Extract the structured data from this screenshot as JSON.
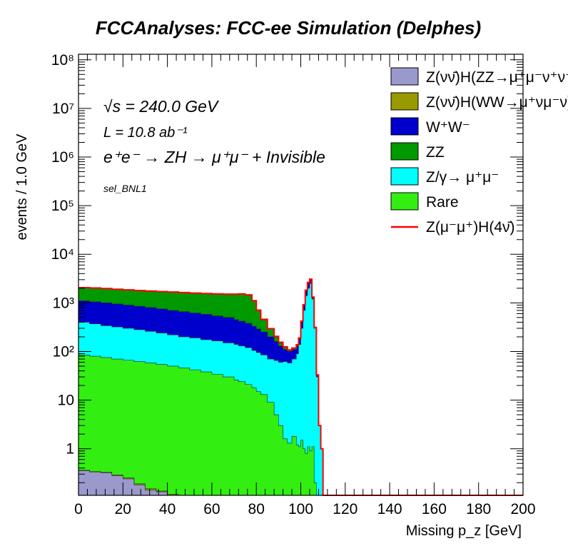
{
  "chart_data": {
    "type": "area",
    "title": "FCCAnalyses: FCC-ee Simulation (Delphes)",
    "xlabel": "Missing p_z [GeV]",
    "ylabel": "events / 1.0 GeV",
    "xlim": [
      0,
      200
    ],
    "ylim": [
      0.11,
      130000000
    ],
    "log_y": true,
    "grid": false,
    "legend_position": "top-right",
    "annotations": [
      "√s = 240.0 GeV",
      "L = 10.8 ab⁻¹",
      "e⁺e⁻ → ZH → μ⁺μ⁻ + Invisible",
      "sel_BNL1"
    ],
    "x_ticks": [
      "0",
      "20",
      "40",
      "60",
      "80",
      "100",
      "120",
      "140",
      "160",
      "180",
      "200"
    ],
    "y_ticks": [
      "1",
      "10",
      "10²",
      "10³",
      "10⁴",
      "10⁵",
      "10⁶",
      "10⁷",
      "10⁸"
    ],
    "x": [
      0,
      5,
      10,
      15,
      20,
      25,
      30,
      35,
      40,
      45,
      50,
      55,
      60,
      65,
      70,
      72,
      75,
      78,
      80,
      82,
      85,
      88,
      90,
      92,
      94,
      96,
      98,
      99,
      100,
      101,
      102,
      103,
      104,
      105,
      106,
      107,
      108,
      109,
      110,
      200
    ],
    "series": [
      {
        "name": "Z(νν̄)H(ZZ→μ⁺μ⁻ν⁺ν⁻)",
        "color": "#9999cc",
        "values": [
          0.35,
          0.33,
          0.32,
          0.28,
          0.24,
          0.18,
          0.14,
          0.13,
          0.11,
          0.11,
          0.11,
          0.11,
          0.11,
          0.11,
          0.11,
          0.11,
          0.11,
          0.11,
          0.11,
          0.11,
          0.11,
          0.11,
          0.11,
          0.11,
          0.11,
          0.11,
          0.11,
          0.11,
          0.11,
          0.11,
          0.11,
          0.11,
          0.11,
          0.11,
          0.11,
          0.11,
          0.11,
          0.11,
          0.11,
          0.11
        ]
      },
      {
        "name": "Z(νν̄)H(WW→μ⁺νμ⁻ν)",
        "color": "#999900",
        "values": [
          0.36,
          0.34,
          0.33,
          0.29,
          0.25,
          0.19,
          0.15,
          0.135,
          0.115,
          0.11,
          0.11,
          0.11,
          0.11,
          0.11,
          0.11,
          0.11,
          0.11,
          0.11,
          0.11,
          0.11,
          0.11,
          0.11,
          0.11,
          0.11,
          0.11,
          0.11,
          0.11,
          0.11,
          0.11,
          0.11,
          0.11,
          0.11,
          0.11,
          0.11,
          0.11,
          0.11,
          0.11,
          0.11,
          0.11,
          0.11
        ]
      },
      {
        "name": "Rare",
        "color": "#33ee11",
        "values": [
          85,
          80,
          75,
          70,
          66,
          62,
          58,
          54,
          50,
          46,
          42,
          38,
          34,
          30,
          26,
          24,
          21,
          18,
          15,
          13,
          9,
          5,
          3,
          1.6,
          1.3,
          1.8,
          1.2,
          1.1,
          1.5,
          1.0,
          0.8,
          1.1,
          0.9,
          1.1,
          0.2,
          0.11,
          0.11,
          0.11,
          0.11,
          0.11
        ]
      },
      {
        "name": "Z/γ→ μ⁺μ⁻",
        "color": "#00ffff",
        "values": [
          400,
          370,
          340,
          320,
          300,
          280,
          260,
          240,
          220,
          200,
          190,
          175,
          165,
          150,
          140,
          130,
          120,
          105,
          95,
          85,
          70,
          65,
          60,
          62,
          58,
          70,
          90,
          140,
          300,
          700,
          1400,
          2000,
          2500,
          1200,
          300,
          30,
          3,
          1,
          0.11,
          0.11
        ]
      },
      {
        "name": "W⁺W⁻",
        "color": "#0000cc",
        "values": [
          1100,
          1050,
          1000,
          950,
          900,
          850,
          800,
          750,
          700,
          660,
          620,
          580,
          540,
          500,
          450,
          420,
          380,
          330,
          290,
          250,
          200,
          160,
          130,
          110,
          100,
          110,
          130,
          180,
          400,
          900,
          1800,
          2600,
          3000,
          1300,
          310,
          32,
          3,
          1,
          0.11,
          0.11
        ]
      },
      {
        "name": "ZZ",
        "color": "#009900",
        "values": [
          2050,
          2010,
          1960,
          1900,
          1840,
          1790,
          1740,
          1700,
          1660,
          1620,
          1580,
          1550,
          1520,
          1500,
          1500,
          1520,
          1450,
          1100,
          700,
          450,
          290,
          200,
          150,
          120,
          105,
          115,
          135,
          185,
          410,
          910,
          1820,
          2620,
          3050,
          1310,
          312,
          32,
          3,
          1,
          0.11,
          0.11
        ]
      },
      {
        "name": "Z(μ⁻μ⁺)H(4ν̄)",
        "color": "#ff0000",
        "line": true,
        "values": [
          2060,
          2020,
          1970,
          1910,
          1850,
          1800,
          1750,
          1710,
          1670,
          1630,
          1590,
          1560,
          1530,
          1510,
          1510,
          1530,
          1460,
          1110,
          710,
          460,
          295,
          205,
          155,
          125,
          108,
          118,
          138,
          190,
          420,
          920,
          1830,
          2640,
          3080,
          1320,
          314,
          33,
          3,
          1,
          0.11,
          0.11
        ]
      }
    ]
  },
  "legend": {
    "items": [
      {
        "label": "Z(νν̄)H(ZZ→μ⁺μ⁻ν⁺ν⁻)",
        "color": "#9999cc",
        "kind": "box"
      },
      {
        "label": "Z(νν̄)H(WW→μ⁺νμ⁻ν)",
        "color": "#999900",
        "kind": "box"
      },
      {
        "label": "W⁺W⁻",
        "color": "#0000cc",
        "kind": "box"
      },
      {
        "label": "ZZ",
        "color": "#009900",
        "kind": "box"
      },
      {
        "label": "Z/γ→ μ⁺μ⁻",
        "color": "#00ffff",
        "kind": "box"
      },
      {
        "label": "Rare",
        "color": "#33ee11",
        "kind": "box"
      },
      {
        "label": "Z(μ⁻μ⁺)H(4ν̄)",
        "color": "#ff0000",
        "kind": "line"
      }
    ]
  }
}
